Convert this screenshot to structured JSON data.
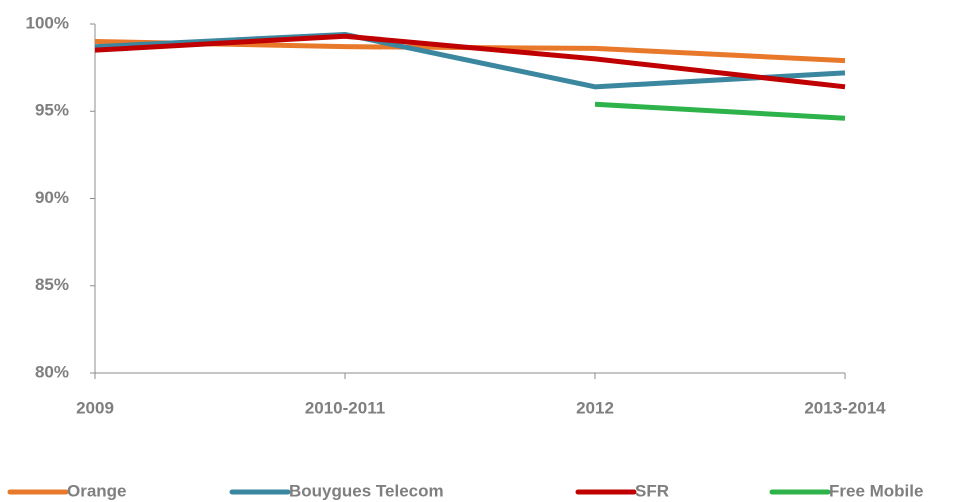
{
  "chart_data": {
    "type": "line",
    "categories": [
      "2009",
      "2010-2011",
      "2012",
      "2013-2014"
    ],
    "series": [
      {
        "name": "Orange",
        "color": "#e8782a",
        "values": [
          99.0,
          98.7,
          98.6,
          97.9
        ]
      },
      {
        "name": "Bouygues Telecom",
        "color": "#3b87a0",
        "values": [
          98.7,
          99.4,
          96.4,
          97.2
        ]
      },
      {
        "name": "SFR",
        "color": "#c00000",
        "values": [
          98.5,
          99.3,
          98.0,
          96.4
        ]
      },
      {
        "name": "Free Mobile",
        "color": "#2db34a",
        "values": [
          null,
          null,
          95.4,
          94.6
        ]
      }
    ],
    "ylim": [
      80,
      100
    ],
    "yticks": [
      {
        "value": 80,
        "label": "80%"
      },
      {
        "value": 85,
        "label": "85%"
      },
      {
        "value": 90,
        "label": "90%"
      },
      {
        "value": 95,
        "label": "95%"
      },
      {
        "value": 100,
        "label": "100%"
      }
    ],
    "grid": false,
    "legend": "bottom"
  }
}
